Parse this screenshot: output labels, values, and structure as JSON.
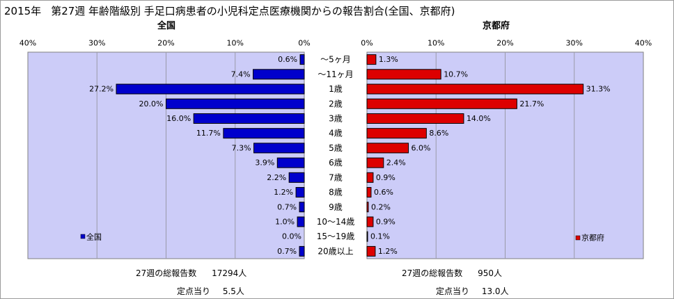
{
  "title": {
    "year": "2015年",
    "text": "第27週 年齢階級別 手足口病患者の小児科定点医療機関からの報告割合(全国、京都府)"
  },
  "colors": {
    "left_fill": "#0000cc",
    "right_fill": "#dd0000",
    "plot_bg": "#ccccf8",
    "grid": "#9a9aa8"
  },
  "chart_data": [
    {
      "type": "bar",
      "title": "全国",
      "orientation": "horizontal",
      "direction": "right-to-left",
      "categories": [
        "～5ヶ月",
        "～11ヶ月",
        "1歳",
        "2歳",
        "3歳",
        "4歳",
        "5歳",
        "6歳",
        "7歳",
        "8歳",
        "9歳",
        "10～14歳",
        "15～19歳",
        "20歳以上"
      ],
      "values": [
        0.6,
        7.4,
        27.2,
        20.0,
        16.0,
        11.7,
        7.3,
        3.9,
        2.2,
        1.2,
        0.7,
        1.0,
        0.0,
        0.7
      ],
      "value_labels": [
        "0.6%",
        "7.4%",
        "27.2%",
        "20.0%",
        "16.0%",
        "11.7%",
        "7.3%",
        "3.9%",
        "2.2%",
        "1.2%",
        "0.7%",
        "1.0%",
        "0.0%",
        "0.7%"
      ],
      "xlim": [
        0,
        40
      ],
      "ticks": [
        "40%",
        "30%",
        "20%",
        "10%",
        "0%"
      ],
      "legend": "全国",
      "legend_position": "bottom-left",
      "grid": true
    },
    {
      "type": "bar",
      "title": "京都府",
      "orientation": "horizontal",
      "direction": "left-to-right",
      "categories": [
        "～5ヶ月",
        "～11ヶ月",
        "1歳",
        "2歳",
        "3歳",
        "4歳",
        "5歳",
        "6歳",
        "7歳",
        "8歳",
        "9歳",
        "10～14歳",
        "15～19歳",
        "20歳以上"
      ],
      "values": [
        1.3,
        10.7,
        31.3,
        21.7,
        14.0,
        8.6,
        6.0,
        2.4,
        0.9,
        0.6,
        0.2,
        0.9,
        0.1,
        1.2
      ],
      "value_labels": [
        "1.3%",
        "10.7%",
        "31.3%",
        "21.7%",
        "14.0%",
        "8.6%",
        "6.0%",
        "2.4%",
        "0.9%",
        "0.6%",
        "0.2%",
        "0.9%",
        "0.1%",
        "1.2%"
      ],
      "xlim": [
        0,
        40
      ],
      "ticks": [
        "0%",
        "10%",
        "20%",
        "30%",
        "40%"
      ],
      "legend": "京都府",
      "legend_position": "bottom-right",
      "grid": true
    }
  ],
  "footer": {
    "left": {
      "total_label": "27週の総報告数",
      "total_value": "17294人",
      "per_label": "定点当り",
      "per_value": "5.5人"
    },
    "right": {
      "total_label": "27週の総報告数",
      "total_value": "950人",
      "per_label": "定点当り",
      "per_value": "13.0人"
    }
  }
}
